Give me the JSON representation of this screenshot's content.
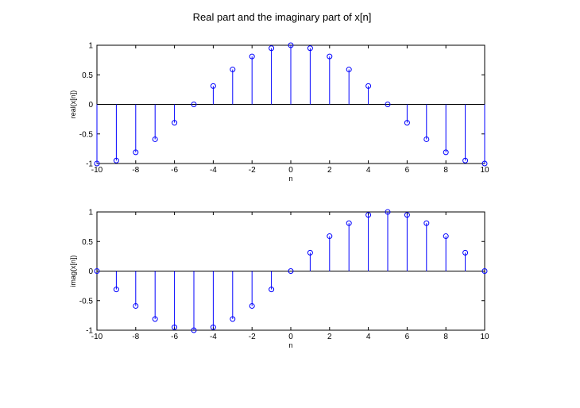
{
  "figure": {
    "title": "Real part and the imaginary part of x[n]"
  },
  "colors": {
    "stem": "#0000ff",
    "axis": "#000000",
    "baseline": "#000000",
    "marker_fill": "#ffffff"
  },
  "chart_data": [
    {
      "type": "stem",
      "xlabel": "n",
      "ylabel": "real(x[n])",
      "xlim": [
        -10,
        10
      ],
      "ylim": [
        -1,
        1
      ],
      "xticks": [
        -10,
        -8,
        -6,
        -4,
        -2,
        0,
        2,
        4,
        6,
        8,
        10
      ],
      "yticks": [
        1,
        0.5,
        0,
        -0.5,
        -1
      ],
      "ytick_labels": [
        "1",
        "0.5",
        "0",
        "-0.5",
        "-1"
      ],
      "grid": false,
      "x": [
        -10,
        -9,
        -8,
        -7,
        -6,
        -5,
        -4,
        -3,
        -2,
        -1,
        0,
        1,
        2,
        3,
        4,
        5,
        6,
        7,
        8,
        9,
        10
      ],
      "values": [
        -1,
        -0.95,
        -0.81,
        -0.59,
        -0.31,
        0,
        0.31,
        0.59,
        0.81,
        0.95,
        1,
        0.95,
        0.81,
        0.59,
        0.31,
        0,
        -0.31,
        -0.59,
        -0.81,
        -0.95,
        -1
      ]
    },
    {
      "type": "stem",
      "xlabel": "n",
      "ylabel": "imag(x[n])",
      "xlim": [
        -10,
        10
      ],
      "ylim": [
        -1,
        1
      ],
      "xticks": [
        -10,
        -8,
        -6,
        -4,
        -2,
        0,
        2,
        4,
        6,
        8,
        10
      ],
      "yticks": [
        1,
        0.5,
        0,
        -0.5,
        -1
      ],
      "ytick_labels": [
        "1",
        "0.5",
        "0",
        "-0.5",
        "-1"
      ],
      "grid": false,
      "x": [
        -10,
        -9,
        -8,
        -7,
        -6,
        -5,
        -4,
        -3,
        -2,
        -1,
        0,
        1,
        2,
        3,
        4,
        5,
        6,
        7,
        8,
        9,
        10
      ],
      "values": [
        0,
        -0.31,
        -0.59,
        -0.81,
        -0.95,
        -1,
        -0.95,
        -0.81,
        -0.59,
        -0.31,
        0,
        0.31,
        0.59,
        0.81,
        0.95,
        1,
        0.95,
        0.81,
        0.59,
        0.31,
        0
      ]
    }
  ]
}
